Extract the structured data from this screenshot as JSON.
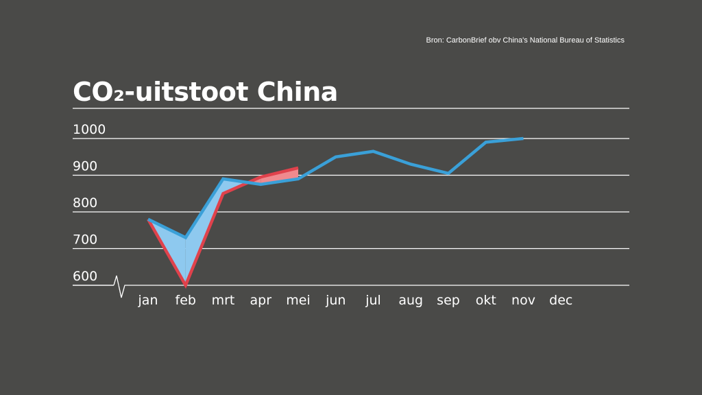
{
  "source": "Bron: CarbonBrief obv China's National Bureau of Statistics",
  "title": "CO₂-uitstoot China",
  "colors": {
    "background": "#4a4a48",
    "grid": "#ffffff",
    "text": "#ffffff",
    "series_blue": "#3aa0d8",
    "series_red": "#e0424c",
    "fill_below": "#8ec9ef",
    "fill_above": "#f08a8e"
  },
  "chart_data": {
    "type": "line",
    "title": "CO₂-uitstoot China",
    "categories": [
      "jan",
      "feb",
      "mrt",
      "apr",
      "mei",
      "jun",
      "jul",
      "aug",
      "sep",
      "okt",
      "nov",
      "dec"
    ],
    "yticks": [
      "600",
      "700",
      "800",
      "900",
      "1000"
    ],
    "ylim": [
      600,
      1000
    ],
    "axis_break": true,
    "grid": true,
    "series": [
      {
        "values": [
          780,
          730,
          890,
          875,
          890,
          950,
          965,
          930,
          905,
          990,
          1000,
          null
        ]
      },
      {
        "values": [
          780,
          600,
          850,
          895,
          920,
          null,
          null,
          null,
          null,
          null,
          null,
          null
        ]
      }
    ]
  }
}
